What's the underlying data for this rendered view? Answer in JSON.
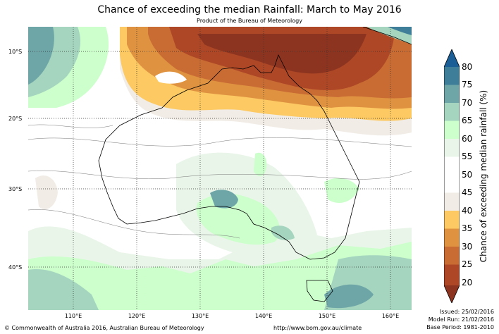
{
  "header": {
    "title": "Chance of exceeding the median Rainfall: March to May 2016",
    "subtitle": "Product of the Bureau of Meteorology"
  },
  "axes": {
    "lat_labels": [
      "10°S",
      "20°S",
      "30°S",
      "40°S"
    ],
    "lon_labels": [
      "110°E",
      "120°E",
      "130°E",
      "140°E",
      "150°E",
      "160°E"
    ]
  },
  "colorbar": {
    "title": "Chance of exceeding median rainfall (%)",
    "ticks": [
      "80",
      "75",
      "70",
      "65",
      "60",
      "55",
      "50",
      "45",
      "40",
      "35",
      "30",
      "25",
      "20"
    ],
    "colors": [
      "#1c5f96",
      "#3f7e98",
      "#6ea6a8",
      "#a5d5bf",
      "#ccffcc",
      "#e9f5e9",
      "#ffffff",
      "#ffffff",
      "#f1ece6",
      "#fcc963",
      "#df9341",
      "#c96c34",
      "#ad4726",
      "#8c3420"
    ]
  },
  "footer": {
    "copyright": "© Commonwealth of Australia 2016, Australian Bureau of Meteorology",
    "url": "http://www.bom.gov.au/climate",
    "issued": "Issued: 25/02/2016",
    "model_run": "Model Run: 21/02/2016",
    "base_period": "Base Period: 1981-2010"
  }
}
